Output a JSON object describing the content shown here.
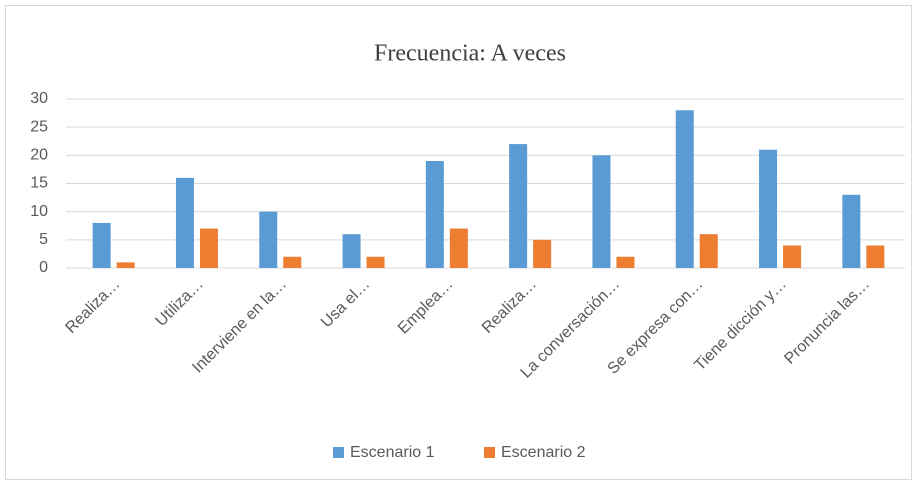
{
  "chart_data": {
    "type": "bar",
    "title": "Frecuencia: A veces",
    "categories": [
      "Realiza…",
      "Utiliza…",
      "Interviene en la…",
      "Usa el…",
      "Emplea…",
      "Realiza…",
      "La conversación…",
      "Se expresa con…",
      "Tiene dicción y…",
      "Pronuncia las…"
    ],
    "series": [
      {
        "name": "Escenario 1",
        "color": "#5b9bd5",
        "values": [
          8,
          16,
          10,
          6,
          19,
          22,
          20,
          28,
          21,
          13
        ]
      },
      {
        "name": "Escenario 2",
        "color": "#ed7d31",
        "values": [
          1,
          7,
          2,
          2,
          7,
          5,
          2,
          6,
          4,
          4
        ]
      }
    ],
    "ylim": [
      0,
      30
    ],
    "yticks": [
      0,
      5,
      10,
      15,
      20,
      25,
      30
    ],
    "grid": true,
    "legend": "bottom"
  }
}
